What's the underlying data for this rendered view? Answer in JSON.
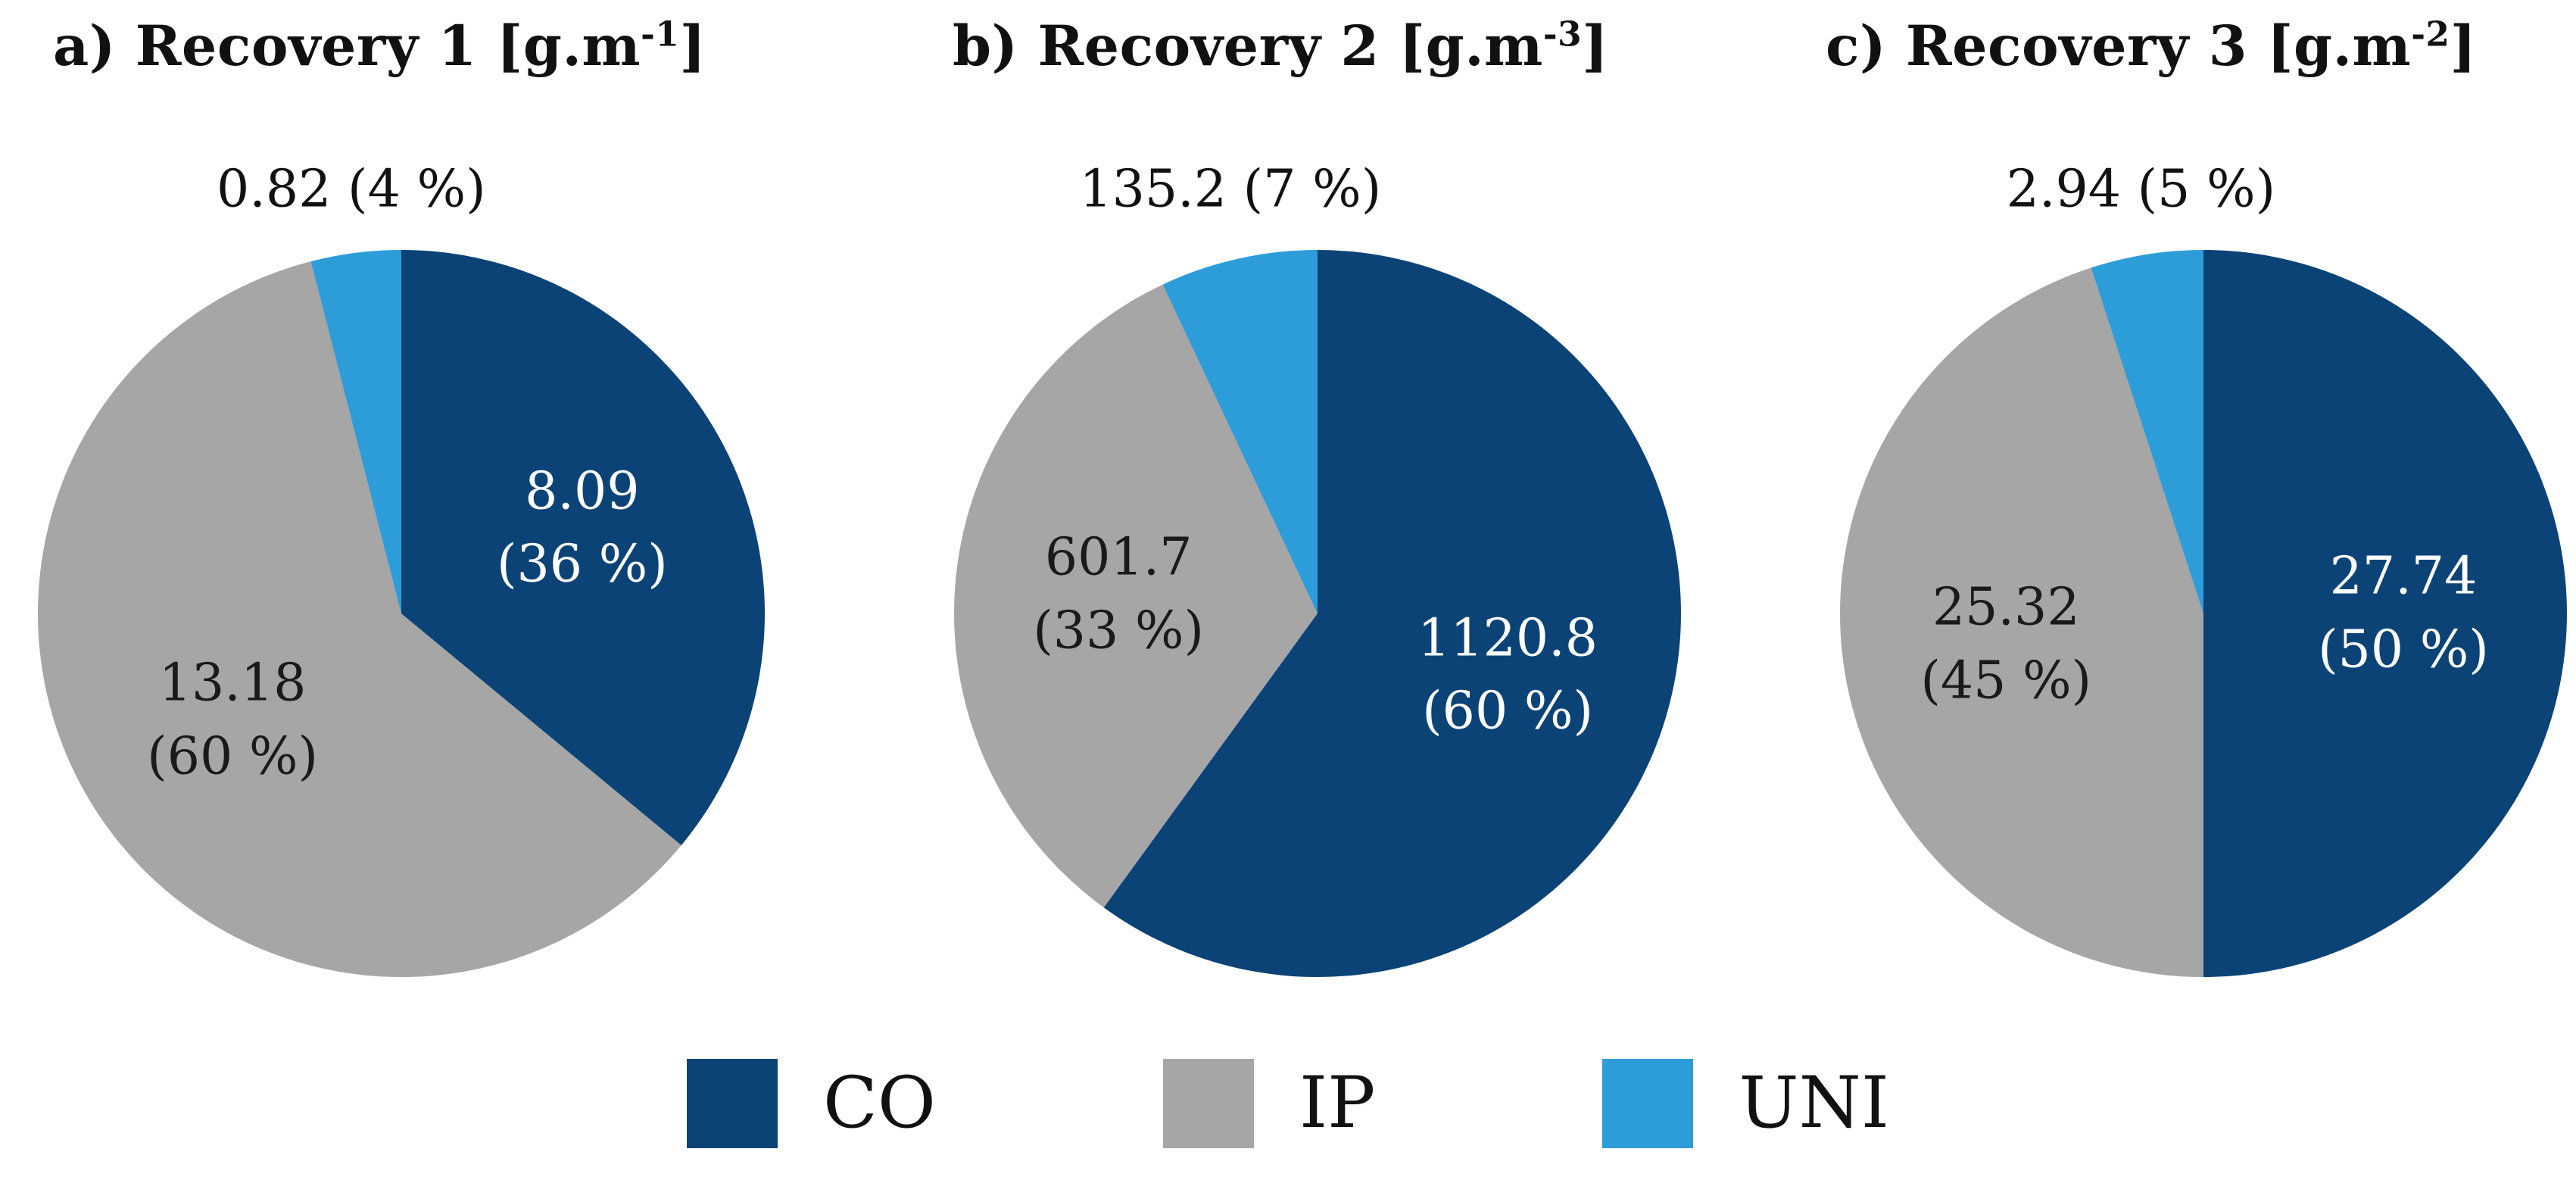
{
  "page": {
    "background": "#FFFFFF"
  },
  "legend": {
    "position": "bottom",
    "items": [
      {
        "label": "CO",
        "color": "#0B4377"
      },
      {
        "label": "IP",
        "color": "#A6A6A6"
      },
      {
        "label": "UNI",
        "color": "#2D9DDA"
      }
    ]
  },
  "chart_data": [
    {
      "type": "pie",
      "title": "a) Recovery 1 [g.m-1]",
      "title_prefix": "a) Recovery 1 [g.m",
      "title_exponent": "-1",
      "title_suffix": "]",
      "slices": [
        {
          "name": "CO",
          "value": 8.09,
          "pct": 36,
          "value_label": "8.09",
          "pct_label": "(36 %)",
          "color": "#0B4377",
          "text_color": "#FFFFFF",
          "placement": "inside"
        },
        {
          "name": "IP",
          "value": 13.18,
          "pct": 60,
          "value_label": "13.18",
          "pct_label": "(60 %)",
          "color": "#A6A6A6",
          "text_color": "#1A1A1A",
          "placement": "inside"
        },
        {
          "name": "UNI",
          "value": 0.82,
          "pct": 4,
          "value_label": "0.82",
          "pct_label": "(4 %)",
          "callout_label": "0.82 (4 %)",
          "color": "#2D9DDA",
          "text_color": "#1A1A1A",
          "placement": "outside"
        }
      ]
    },
    {
      "type": "pie",
      "title": "b) Recovery 2 [g.m-3]",
      "title_prefix": "b) Recovery 2 [g.m",
      "title_exponent": "-3",
      "title_suffix": "]",
      "slices": [
        {
          "name": "CO",
          "value": 1120.8,
          "pct": 60,
          "value_label": "1120.8",
          "pct_label": "(60 %)",
          "color": "#0B4377",
          "text_color": "#FFFFFF",
          "placement": "inside"
        },
        {
          "name": "IP",
          "value": 601.7,
          "pct": 33,
          "value_label": "601.7",
          "pct_label": "(33 %)",
          "color": "#A6A6A6",
          "text_color": "#1A1A1A",
          "placement": "inside"
        },
        {
          "name": "UNI",
          "value": 135.2,
          "pct": 7,
          "value_label": "135.2",
          "pct_label": "(7 %)",
          "callout_label": "135.2 (7 %)",
          "color": "#2D9DDA",
          "text_color": "#1A1A1A",
          "placement": "outside"
        }
      ]
    },
    {
      "type": "pie",
      "title": "c) Recovery 3 [g.m-2]",
      "title_prefix": "c) Recovery 3 [g.m",
      "title_exponent": "-2",
      "title_suffix": "]",
      "slices": [
        {
          "name": "CO",
          "value": 27.74,
          "pct": 50,
          "value_label": "27.74",
          "pct_label": "(50 %)",
          "color": "#0B4377",
          "text_color": "#FFFFFF",
          "placement": "inside"
        },
        {
          "name": "IP",
          "value": 25.32,
          "pct": 45,
          "value_label": "25.32",
          "pct_label": "(45 %)",
          "color": "#A6A6A6",
          "text_color": "#1A1A1A",
          "placement": "inside"
        },
        {
          "name": "UNI",
          "value": 2.94,
          "pct": 5,
          "value_label": "2.94",
          "pct_label": "(5 %)",
          "callout_label": "2.94 (5 %)",
          "color": "#2D9DDA",
          "text_color": "#1A1A1A",
          "placement": "outside"
        }
      ]
    }
  ]
}
